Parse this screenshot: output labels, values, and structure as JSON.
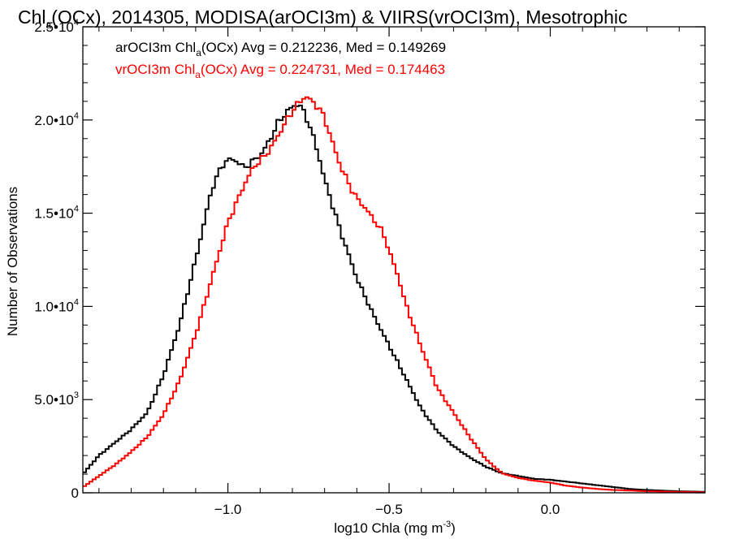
{
  "chart_data": {
    "type": "line",
    "title": {
      "main": "Chl",
      "sub": "a",
      "rest": "(OCx), 2014305, MODISA(arOCI3m) & VIIRS(vrOCI3m), Mesotrophic"
    },
    "xlabel": {
      "main": "log10 Chla (mg m",
      "sup": "-3",
      "rest": ")"
    },
    "ylabel": "Number of Observations",
    "xlim": [
      -1.45,
      0.48
    ],
    "ylim": [
      0,
      25000
    ],
    "x_ticks": [
      {
        "value": -1.0,
        "label": "−1.0"
      },
      {
        "value": -0.5,
        "label": "−0.5"
      },
      {
        "value": 0.0,
        "label": "0.0"
      }
    ],
    "y_ticks": [
      {
        "value": 0,
        "label": "0",
        "exp": ""
      },
      {
        "value": 5000,
        "label": "5.0•10",
        "exp": "3"
      },
      {
        "value": 10000,
        "label": "1.0•10",
        "exp": "4"
      },
      {
        "value": 15000,
        "label": "1.5•10",
        "exp": "4"
      },
      {
        "value": 20000,
        "label": "2.0•10",
        "exp": "4"
      },
      {
        "value": 25000,
        "label": "2.5•10",
        "exp": "4"
      }
    ],
    "series": [
      {
        "label_main": "arOCI3m Chl",
        "label_sub": "a",
        "label_rest": "(OCx) Avg = 0.212236, Med = 0.149269",
        "color": "#000000",
        "points": [
          [
            -1.45,
            1000
          ],
          [
            -1.4,
            2000
          ],
          [
            -1.35,
            2700
          ],
          [
            -1.3,
            3400
          ],
          [
            -1.25,
            4300
          ],
          [
            -1.2,
            6300
          ],
          [
            -1.15,
            9000
          ],
          [
            -1.1,
            12500
          ],
          [
            -1.05,
            16300
          ],
          [
            -1.02,
            17500
          ],
          [
            -1.0,
            17900
          ],
          [
            -0.97,
            17800
          ],
          [
            -0.95,
            17400
          ],
          [
            -0.93,
            17700
          ],
          [
            -0.9,
            18100
          ],
          [
            -0.87,
            18900
          ],
          [
            -0.85,
            19700
          ],
          [
            -0.82,
            20400
          ],
          [
            -0.8,
            20700
          ],
          [
            -0.78,
            20900
          ],
          [
            -0.75,
            19900
          ],
          [
            -0.72,
            18200
          ],
          [
            -0.7,
            16800
          ],
          [
            -0.65,
            14000
          ],
          [
            -0.6,
            11500
          ],
          [
            -0.55,
            9600
          ],
          [
            -0.5,
            7900
          ],
          [
            -0.45,
            6200
          ],
          [
            -0.4,
            4500
          ],
          [
            -0.35,
            3300
          ],
          [
            -0.3,
            2500
          ],
          [
            -0.25,
            1900
          ],
          [
            -0.2,
            1400
          ],
          [
            -0.15,
            1050
          ],
          [
            -0.1,
            900
          ],
          [
            -0.05,
            750
          ],
          [
            0.0,
            700
          ],
          [
            0.05,
            600
          ],
          [
            0.1,
            500
          ],
          [
            0.15,
            400
          ],
          [
            0.2,
            300
          ],
          [
            0.25,
            200
          ],
          [
            0.3,
            150
          ],
          [
            0.4,
            80
          ],
          [
            0.48,
            50
          ]
        ]
      },
      {
        "label_main": "vrOCI3m Chl",
        "label_sub": "a",
        "label_rest": "(OCx) Avg = 0.224731, Med = 0.174463",
        "color": "#ff0000",
        "points": [
          [
            -1.45,
            300
          ],
          [
            -1.4,
            900
          ],
          [
            -1.35,
            1500
          ],
          [
            -1.3,
            2200
          ],
          [
            -1.25,
            3000
          ],
          [
            -1.2,
            4200
          ],
          [
            -1.15,
            6000
          ],
          [
            -1.1,
            8500
          ],
          [
            -1.05,
            11500
          ],
          [
            -1.0,
            14500
          ],
          [
            -0.95,
            16500
          ],
          [
            -0.92,
            17500
          ],
          [
            -0.9,
            17800
          ],
          [
            -0.87,
            18400
          ],
          [
            -0.85,
            19000
          ],
          [
            -0.82,
            19900
          ],
          [
            -0.8,
            20500
          ],
          [
            -0.78,
            20900
          ],
          [
            -0.76,
            21300
          ],
          [
            -0.74,
            21000
          ],
          [
            -0.72,
            20700
          ],
          [
            -0.7,
            20100
          ],
          [
            -0.67,
            18500
          ],
          [
            -0.65,
            17500
          ],
          [
            -0.62,
            16400
          ],
          [
            -0.6,
            15800
          ],
          [
            -0.57,
            15200
          ],
          [
            -0.55,
            14700
          ],
          [
            -0.52,
            14000
          ],
          [
            -0.5,
            13000
          ],
          [
            -0.47,
            11500
          ],
          [
            -0.45,
            10200
          ],
          [
            -0.4,
            7800
          ],
          [
            -0.35,
            5600
          ],
          [
            -0.3,
            4300
          ],
          [
            -0.25,
            3000
          ],
          [
            -0.2,
            1800
          ],
          [
            -0.15,
            1050
          ],
          [
            -0.1,
            800
          ],
          [
            -0.05,
            650
          ],
          [
            0.0,
            550
          ],
          [
            0.05,
            380
          ],
          [
            0.1,
            280
          ],
          [
            0.15,
            200
          ],
          [
            0.2,
            150
          ],
          [
            0.25,
            120
          ],
          [
            0.3,
            80
          ],
          [
            0.4,
            50
          ],
          [
            0.48,
            30
          ]
        ]
      }
    ],
    "grid": false,
    "legend_position": "top-left"
  }
}
